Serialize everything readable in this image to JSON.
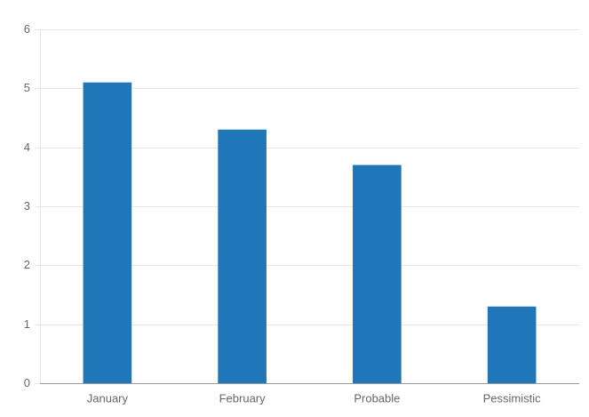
{
  "chart_data": {
    "type": "bar",
    "categories": [
      "January",
      "February",
      "Probable",
      "Pessimistic"
    ],
    "values": [
      5.1,
      4.3,
      3.7,
      1.3
    ],
    "color": "#2077b8",
    "ylim": [
      0,
      6
    ],
    "yticks": [
      0,
      1,
      2,
      3,
      4,
      5,
      6
    ],
    "grid": true
  }
}
